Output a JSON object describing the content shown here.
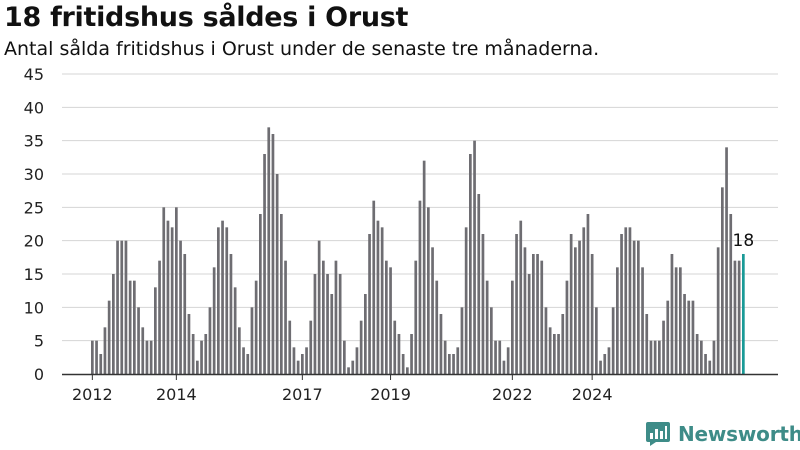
{
  "title": "18 fritidshus såldes i Orust",
  "subtitle": "Antal sålda fritidshus i Orust under de senaste tre månaderna.",
  "brand": "Newsworthy",
  "colors": {
    "bar": "#6e6d72",
    "highlight": "#1a9a97",
    "grid": "#d4d4d4",
    "axis": "#333333",
    "brand": "#3e8c88"
  },
  "chart_data": {
    "type": "bar",
    "ylim": [
      0,
      45
    ],
    "yticks": [
      0,
      5,
      10,
      15,
      20,
      25,
      30,
      35,
      40,
      45
    ],
    "grid": true,
    "x_ticks": [
      {
        "label": "2012",
        "index": 0
      },
      {
        "label": "2014",
        "index": 20
      },
      {
        "label": "2017",
        "index": 50
      },
      {
        "label": "2019",
        "index": 71
      },
      {
        "label": "2022",
        "index": 100
      },
      {
        "label": "2024",
        "index": 119
      }
    ],
    "values": [
      5,
      5,
      3,
      7,
      11,
      15,
      20,
      20,
      20,
      14,
      14,
      10,
      7,
      5,
      5,
      13,
      17,
      25,
      23,
      22,
      25,
      20,
      18,
      9,
      6,
      2,
      5,
      6,
      10,
      16,
      22,
      23,
      22,
      18,
      13,
      7,
      4,
      3,
      10,
      14,
      24,
      33,
      37,
      36,
      30,
      24,
      17,
      8,
      4,
      2,
      3,
      4,
      8,
      15,
      20,
      17,
      15,
      12,
      17,
      15,
      5,
      1,
      2,
      4,
      8,
      12,
      21,
      26,
      23,
      22,
      17,
      16,
      8,
      6,
      3,
      1,
      6,
      17,
      26,
      32,
      25,
      19,
      14,
      9,
      5,
      3,
      3,
      4,
      10,
      22,
      33,
      35,
      27,
      21,
      14,
      10,
      5,
      5,
      2,
      4,
      14,
      21,
      23,
      19,
      15,
      18,
      18,
      17,
      10,
      7,
      6,
      6,
      9,
      14,
      21,
      19,
      20,
      22,
      24,
      18,
      10,
      2,
      3,
      4,
      10,
      16,
      21,
      22,
      22,
      20,
      20,
      16,
      9,
      5,
      5,
      5,
      8,
      11,
      18,
      16,
      16,
      12,
      11,
      11,
      6,
      5,
      3,
      2,
      5,
      19,
      28,
      34,
      24,
      17,
      17,
      18
    ],
    "highlight_index": 155,
    "highlight_label": "18"
  }
}
